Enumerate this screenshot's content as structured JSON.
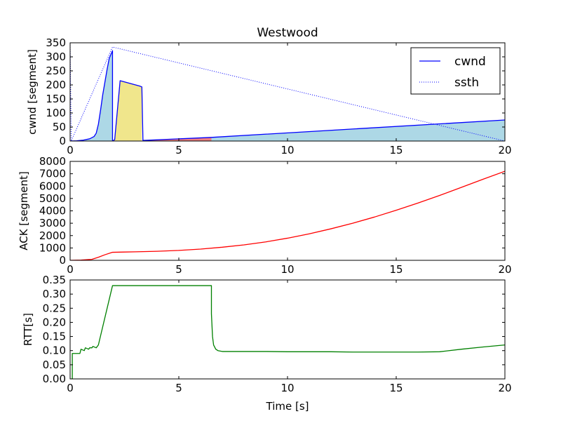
{
  "figure": {
    "title": "Westwood",
    "xlabel": "Time [s]"
  },
  "chart_data": [
    {
      "type": "area",
      "id": "cwnd",
      "ylabel": "cwnd [segment]",
      "xlim": [
        0,
        20
      ],
      "ylim": [
        0,
        350
      ],
      "xticks": [
        "0",
        "5",
        "10",
        "15",
        "20"
      ],
      "yticks": [
        "0",
        "50",
        "100",
        "150",
        "200",
        "250",
        "300",
        "350"
      ],
      "legend": {
        "placement": "top-right",
        "entries": [
          {
            "label": "cwnd",
            "style": "solid",
            "color": "#0000ff"
          },
          {
            "label": "ssth",
            "style": "dotted",
            "color": "#0000ff"
          }
        ]
      },
      "series": [
        {
          "name": "cwnd",
          "color": "#0000ff",
          "x": [
            0,
            0.3,
            0.6,
            0.9,
            1.1,
            1.2,
            1.3,
            1.4,
            1.5,
            1.6,
            1.7,
            1.8,
            1.95,
            1.95,
            2.05,
            2.3,
            3.2,
            3.3,
            3.35,
            6.5,
            20
          ],
          "y": [
            0,
            1,
            3,
            8,
            16,
            28,
            60,
            110,
            165,
            210,
            255,
            295,
            322,
            0,
            5,
            215,
            196,
            193,
            2,
            13,
            75
          ]
        },
        {
          "name": "ssth",
          "color": "#0000ff",
          "style": "dotted",
          "x": [
            0,
            0.05,
            1.95,
            20
          ],
          "y": [
            350,
            0,
            335,
            0
          ]
        }
      ],
      "fill_regions": [
        {
          "color": "#add8e6",
          "x": [
            0,
            0.3,
            0.6,
            0.9,
            1.1,
            1.2,
            1.3,
            1.4,
            1.5,
            1.6,
            1.7,
            1.8,
            1.95
          ],
          "y": [
            0,
            1,
            3,
            8,
            16,
            28,
            60,
            110,
            165,
            210,
            255,
            295,
            322
          ]
        },
        {
          "color": "#f0e68c",
          "x": [
            1.95,
            2.05,
            2.3,
            3.2,
            3.3
          ],
          "y": [
            0,
            5,
            215,
            196,
            193
          ]
        },
        {
          "color": "#f08080",
          "x": [
            3.35,
            6.5
          ],
          "y": [
            2,
            13
          ]
        },
        {
          "color": "#add8e6",
          "x": [
            6.5,
            20
          ],
          "y": [
            13,
            75
          ]
        }
      ]
    },
    {
      "type": "line",
      "id": "ack",
      "ylabel": "ACK [segment]",
      "xlim": [
        0,
        20
      ],
      "ylim": [
        0,
        8000
      ],
      "xticks": [
        "0",
        "5",
        "10",
        "15",
        "20"
      ],
      "yticks": [
        "0",
        "1000",
        "2000",
        "3000",
        "4000",
        "5000",
        "6000",
        "7000",
        "8000"
      ],
      "series": [
        {
          "name": "ACK",
          "color": "#ff0000",
          "x": [
            0,
            0.5,
            1.0,
            1.3,
            1.6,
            1.95,
            2.5,
            3.0,
            4.0,
            5.0,
            6.0,
            7.0,
            8.0,
            9.0,
            10.0,
            11.0,
            12.0,
            13.0,
            14.0,
            15.0,
            16.0,
            17.0,
            18.0,
            19.0,
            20.0
          ],
          "y": [
            0,
            20,
            80,
            250,
            450,
            650,
            670,
            690,
            730,
            800,
            910,
            1060,
            1250,
            1490,
            1790,
            2140,
            2550,
            3000,
            3500,
            4050,
            4630,
            5250,
            5900,
            6560,
            7200
          ]
        }
      ]
    },
    {
      "type": "line",
      "id": "rtt",
      "ylabel": "RTT[s]",
      "xlim": [
        0,
        20
      ],
      "ylim": [
        0,
        0.35
      ],
      "xticks": [
        "0",
        "5",
        "10",
        "15",
        "20"
      ],
      "yticks": [
        "0.00",
        "0.05",
        "0.10",
        "0.15",
        "0.20",
        "0.25",
        "0.30",
        "0.35"
      ],
      "series": [
        {
          "name": "RTT",
          "color": "#008000",
          "x": [
            0.05,
            0.1,
            0.1,
            0.45,
            0.5,
            0.65,
            0.7,
            0.85,
            0.9,
            1.0,
            1.05,
            1.2,
            1.3,
            1.95,
            6.5,
            6.5,
            6.55,
            6.6,
            6.7,
            6.8,
            7.0,
            7.5,
            8.0,
            9.0,
            10.0,
            11.0,
            12.0,
            13.0,
            14.0,
            15.0,
            16.0,
            17.0,
            18.0,
            19.0,
            20.0
          ],
          "y": [
            0.0,
            0.0,
            0.09,
            0.09,
            0.105,
            0.1,
            0.11,
            0.105,
            0.11,
            0.11,
            0.115,
            0.11,
            0.12,
            0.33,
            0.33,
            0.23,
            0.15,
            0.12,
            0.105,
            0.1,
            0.097,
            0.097,
            0.097,
            0.097,
            0.096,
            0.096,
            0.096,
            0.095,
            0.095,
            0.095,
            0.095,
            0.096,
            0.105,
            0.113,
            0.12
          ]
        }
      ]
    }
  ]
}
